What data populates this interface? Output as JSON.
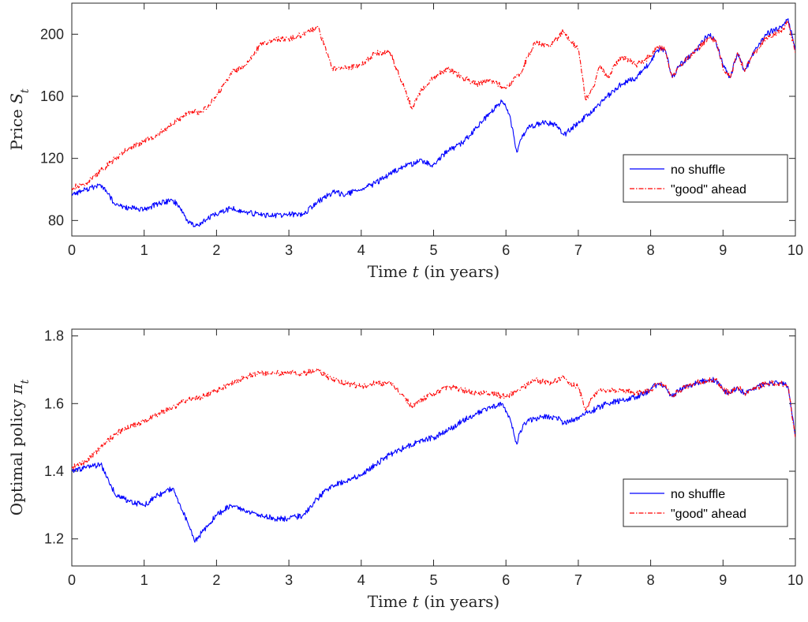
{
  "chart_data": [
    {
      "type": "line",
      "xlabel": "Time t (in years)",
      "xlabel_parts": {
        "pre": "Time ",
        "var": "t",
        "post": " (in years)"
      },
      "ylabel": "Price S_t",
      "ylabel_parts": {
        "pre": "Price ",
        "var": "S",
        "sub": "t"
      },
      "xlim": [
        0,
        10
      ],
      "ylim": [
        70,
        220
      ],
      "xticks": [
        0,
        1,
        2,
        3,
        4,
        5,
        6,
        7,
        8,
        9,
        10
      ],
      "xtick_labels": [
        "0",
        "1",
        "2",
        "3",
        "4",
        "5",
        "6",
        "7",
        "8",
        "9",
        "10"
      ],
      "yticks": [
        80,
        120,
        160,
        200
      ],
      "ytick_labels": [
        "80",
        "120",
        "160",
        "200"
      ],
      "grid": false,
      "legend_position": "lower-right",
      "series": [
        {
          "name": "no shuffle",
          "color": "#0000ff",
          "style": "solid",
          "x": [
            0,
            0.2,
            0.4,
            0.5,
            0.6,
            0.8,
            1.0,
            1.2,
            1.4,
            1.5,
            1.6,
            1.7,
            1.8,
            2.0,
            2.2,
            2.4,
            2.6,
            2.8,
            3.0,
            3.2,
            3.4,
            3.6,
            3.8,
            4.0,
            4.2,
            4.4,
            4.6,
            4.8,
            5.0,
            5.2,
            5.4,
            5.6,
            5.8,
            5.95,
            6.05,
            6.15,
            6.2,
            6.3,
            6.5,
            6.7,
            6.8,
            7.0,
            7.2,
            7.4,
            7.6,
            7.8,
            8.0,
            8.1,
            8.2,
            8.3,
            8.4,
            8.6,
            8.8,
            8.9,
            9.0,
            9.1,
            9.2,
            9.3,
            9.4,
            9.6,
            9.8,
            9.9,
            10.0
          ],
          "y": [
            97,
            100,
            103,
            97,
            90,
            88,
            87,
            91,
            93,
            88,
            80,
            76,
            79,
            84,
            88,
            85,
            84,
            83,
            84,
            84,
            92,
            98,
            97,
            100,
            104,
            110,
            115,
            118,
            116,
            125,
            130,
            140,
            150,
            157,
            148,
            124,
            132,
            140,
            143,
            142,
            135,
            143,
            150,
            160,
            168,
            172,
            182,
            190,
            190,
            172,
            180,
            188,
            200,
            196,
            180,
            172,
            188,
            176,
            186,
            200,
            205,
            210,
            190
          ]
        },
        {
          "name": "\"good\" ahead",
          "color": "#ff0000",
          "style": "dashdot",
          "x": [
            0,
            0.2,
            0.4,
            0.6,
            0.8,
            1.0,
            1.2,
            1.4,
            1.6,
            1.8,
            2.0,
            2.2,
            2.4,
            2.6,
            2.8,
            3.0,
            3.2,
            3.4,
            3.6,
            3.8,
            4.0,
            4.2,
            4.4,
            4.6,
            4.7,
            4.8,
            5.0,
            5.2,
            5.4,
            5.6,
            5.8,
            6.0,
            6.2,
            6.4,
            6.6,
            6.8,
            6.9,
            7.0,
            7.1,
            7.2,
            7.3,
            7.4,
            7.6,
            7.8,
            8.0,
            8.1,
            8.2,
            8.3,
            8.4,
            8.6,
            8.8,
            8.9,
            9.0,
            9.1,
            9.2,
            9.3,
            9.4,
            9.6,
            9.8,
            9.9,
            10.0
          ],
          "y": [
            101,
            104,
            112,
            120,
            127,
            131,
            136,
            142,
            150,
            150,
            160,
            175,
            180,
            193,
            197,
            197,
            200,
            205,
            178,
            178,
            180,
            188,
            188,
            165,
            152,
            162,
            172,
            178,
            172,
            168,
            170,
            165,
            175,
            195,
            192,
            202,
            195,
            190,
            158,
            165,
            180,
            172,
            186,
            180,
            186,
            192,
            190,
            172,
            180,
            188,
            198,
            196,
            178,
            172,
            188,
            176,
            186,
            198,
            202,
            208,
            188
          ]
        }
      ]
    },
    {
      "type": "line",
      "xlabel": "Time t (in years)",
      "xlabel_parts": {
        "pre": "Time ",
        "var": "t",
        "post": " (in years)"
      },
      "ylabel": "Optimal policy π_t",
      "ylabel_parts": {
        "pre": "Optimal policy ",
        "var": "π",
        "sub": "t"
      },
      "xlim": [
        0,
        10
      ],
      "ylim": [
        1.12,
        1.82
      ],
      "xticks": [
        0,
        1,
        2,
        3,
        4,
        5,
        6,
        7,
        8,
        9,
        10
      ],
      "xtick_labels": [
        "0",
        "1",
        "2",
        "3",
        "4",
        "5",
        "6",
        "7",
        "8",
        "9",
        "10"
      ],
      "yticks": [
        1.2,
        1.4,
        1.6,
        1.8
      ],
      "ytick_labels": [
        "1.2",
        "1.4",
        "1.6",
        "1.8"
      ],
      "grid": false,
      "legend_position": "lower-right",
      "series": [
        {
          "name": "no shuffle",
          "color": "#0000ff",
          "style": "solid",
          "x": [
            0,
            0.2,
            0.4,
            0.5,
            0.6,
            0.8,
            1.0,
            1.2,
            1.4,
            1.5,
            1.6,
            1.7,
            1.8,
            2.0,
            2.2,
            2.4,
            2.6,
            2.8,
            3.0,
            3.2,
            3.4,
            3.6,
            3.8,
            4.0,
            4.2,
            4.4,
            4.6,
            4.8,
            5.0,
            5.2,
            5.4,
            5.6,
            5.8,
            5.95,
            6.05,
            6.15,
            6.2,
            6.3,
            6.5,
            6.7,
            6.8,
            7.0,
            7.2,
            7.4,
            7.6,
            7.8,
            8.0,
            8.1,
            8.2,
            8.3,
            8.4,
            8.6,
            8.8,
            8.9,
            9.0,
            9.1,
            9.2,
            9.3,
            9.4,
            9.6,
            9.8,
            9.9,
            10.0
          ],
          "y": [
            1.4,
            1.41,
            1.42,
            1.38,
            1.33,
            1.31,
            1.3,
            1.33,
            1.35,
            1.3,
            1.25,
            1.19,
            1.22,
            1.27,
            1.3,
            1.28,
            1.27,
            1.26,
            1.26,
            1.27,
            1.32,
            1.36,
            1.37,
            1.39,
            1.42,
            1.45,
            1.47,
            1.49,
            1.5,
            1.52,
            1.55,
            1.57,
            1.59,
            1.6,
            1.56,
            1.48,
            1.52,
            1.55,
            1.56,
            1.56,
            1.54,
            1.56,
            1.58,
            1.6,
            1.61,
            1.62,
            1.64,
            1.66,
            1.65,
            1.62,
            1.64,
            1.66,
            1.67,
            1.67,
            1.64,
            1.63,
            1.65,
            1.63,
            1.64,
            1.66,
            1.66,
            1.65,
            1.5
          ]
        },
        {
          "name": "\"good\" ahead",
          "color": "#ff0000",
          "style": "dashdot",
          "x": [
            0,
            0.2,
            0.4,
            0.6,
            0.8,
            1.0,
            1.2,
            1.4,
            1.6,
            1.8,
            2.0,
            2.2,
            2.4,
            2.6,
            2.8,
            3.0,
            3.2,
            3.4,
            3.6,
            3.8,
            4.0,
            4.2,
            4.4,
            4.6,
            4.7,
            4.8,
            5.0,
            5.2,
            5.4,
            5.6,
            5.8,
            6.0,
            6.2,
            6.4,
            6.6,
            6.8,
            6.9,
            7.0,
            7.1,
            7.2,
            7.3,
            7.4,
            7.6,
            7.8,
            8.0,
            8.1,
            8.2,
            8.3,
            8.4,
            8.6,
            8.8,
            8.9,
            9.0,
            9.1,
            9.2,
            9.3,
            9.4,
            9.6,
            9.8,
            9.9,
            10.0
          ],
          "y": [
            1.41,
            1.43,
            1.47,
            1.51,
            1.53,
            1.55,
            1.57,
            1.59,
            1.61,
            1.62,
            1.64,
            1.66,
            1.68,
            1.69,
            1.69,
            1.69,
            1.69,
            1.7,
            1.67,
            1.66,
            1.65,
            1.66,
            1.66,
            1.62,
            1.59,
            1.61,
            1.63,
            1.65,
            1.64,
            1.63,
            1.63,
            1.62,
            1.64,
            1.67,
            1.66,
            1.68,
            1.66,
            1.65,
            1.58,
            1.62,
            1.64,
            1.64,
            1.64,
            1.63,
            1.64,
            1.66,
            1.65,
            1.62,
            1.64,
            1.66,
            1.67,
            1.67,
            1.64,
            1.63,
            1.65,
            1.63,
            1.64,
            1.66,
            1.66,
            1.65,
            1.5
          ]
        }
      ]
    }
  ]
}
